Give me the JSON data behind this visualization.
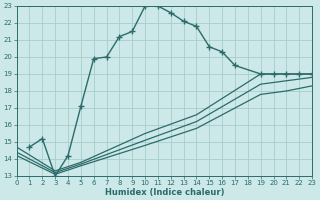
{
  "bg_color": "#cce8e8",
  "grid_color": "#a8cccc",
  "line_color": "#2d6b6b",
  "xlabel": "Humidex (Indice chaleur)",
  "xlim": [
    0,
    23
  ],
  "ylim": [
    13,
    23
  ],
  "xticks": [
    0,
    1,
    2,
    3,
    4,
    5,
    6,
    7,
    8,
    9,
    10,
    11,
    12,
    13,
    14,
    15,
    16,
    17,
    18,
    19,
    20,
    21,
    22,
    23
  ],
  "yticks": [
    13,
    14,
    15,
    16,
    17,
    18,
    19,
    20,
    21,
    22,
    23
  ],
  "line1_x": [
    1,
    2,
    3,
    4,
    5,
    6,
    7,
    8,
    9,
    10,
    11,
    12,
    13,
    14,
    15,
    16,
    17,
    19,
    20,
    21,
    22,
    23
  ],
  "line1_y": [
    14.7,
    15.2,
    13.0,
    14.2,
    17.1,
    19.9,
    20.0,
    21.2,
    21.5,
    23.0,
    23.0,
    22.6,
    22.1,
    21.8,
    20.6,
    20.3,
    19.5,
    19.0,
    19.0,
    19.0,
    19.0,
    19.0
  ],
  "line2_x": [
    0,
    3,
    5,
    10,
    14,
    19,
    20,
    21,
    22,
    23
  ],
  "line2_y": [
    14.7,
    13.3,
    13.8,
    15.5,
    16.6,
    19.0,
    19.0,
    19.0,
    19.0,
    19.0
  ],
  "line3_x": [
    0,
    3,
    5,
    10,
    14,
    19,
    21,
    23
  ],
  "line3_y": [
    14.4,
    13.2,
    13.7,
    15.1,
    16.2,
    18.4,
    18.6,
    18.8
  ],
  "line4_x": [
    0,
    3,
    5,
    10,
    14,
    19,
    21,
    23
  ],
  "line4_y": [
    14.2,
    13.1,
    13.6,
    14.8,
    15.8,
    17.8,
    18.0,
    18.3
  ]
}
